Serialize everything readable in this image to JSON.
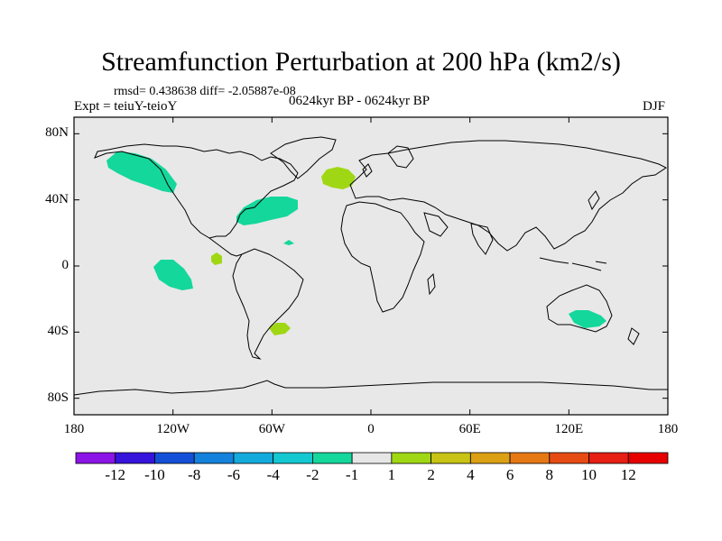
{
  "title": "Streamfunction Perturbation at 200 hPa (km2/s)",
  "stats": "rmsd= 0.438638 diff= -2.05887e-08",
  "expt": "Expt = teiuY-teioY",
  "period": "0624kyr BP - 0624kyr BP",
  "season": "DJF",
  "map": {
    "projection": "cylindrical-equidistant",
    "lon_range": [
      -180,
      180
    ],
    "lat_range": [
      -90,
      90
    ],
    "x_ticks": [
      "180",
      "120W",
      "60W",
      "0",
      "60E",
      "120E",
      "180"
    ],
    "x_tick_values": [
      -180,
      -120,
      -60,
      0,
      60,
      120,
      180
    ],
    "y_ticks": [
      "80N",
      "40N",
      "0",
      "40S",
      "80S"
    ],
    "y_tick_values": [
      80,
      40,
      0,
      -40,
      -80
    ],
    "land_color": "#e8e8e8",
    "perturbation_regions": [
      {
        "name": "north-pacific-gulf-of-alaska",
        "level": "-2 to -1",
        "color": "#14d79b",
        "lon_center": -145,
        "lat_center": 58
      },
      {
        "name": "eastern-north-america",
        "level": "-2 to -1",
        "color": "#14d79b",
        "lon_center": -65,
        "lat_center": 34
      },
      {
        "name": "north-atlantic",
        "level": "1 to 2",
        "color": "#a0d714",
        "lon_center": -20,
        "lat_center": 53
      },
      {
        "name": "east-pacific-equatorial",
        "level": "-2 to -1",
        "color": "#14d79b",
        "lon_center": -121,
        "lat_center": 0
      },
      {
        "name": "small-caribbean-patch",
        "level": "1 to 2",
        "color": "#a0d714",
        "lon_center": -95,
        "lat_center": 5
      },
      {
        "name": "small-tropical-atlantic-patch",
        "level": "-2 to -1",
        "color": "#14d79b",
        "lon_center": -50,
        "lat_center": 14
      },
      {
        "name": "south-america-argentina",
        "level": "1 to 2",
        "color": "#a0d714",
        "lon_center": -57,
        "lat_center": -37
      },
      {
        "name": "southern-australia",
        "level": "-2 to -1",
        "color": "#14d79b",
        "lon_center": 133,
        "lat_center": -32
      }
    ]
  },
  "colorbar": {
    "labels": [
      "-12",
      "-10",
      "-8",
      "-6",
      "-4",
      "-2",
      "-1",
      "1",
      "2",
      "4",
      "6",
      "8",
      "10",
      "12"
    ],
    "colors": [
      "#8c14e6",
      "#3714dc",
      "#1450d7",
      "#1482dc",
      "#14aadc",
      "#14c8d2",
      "#14d79b",
      "#e6e6e6",
      "#a0d714",
      "#c8c314",
      "#dca014",
      "#e67814",
      "#e64b14",
      "#e61e14",
      "#e60000"
    ]
  }
}
